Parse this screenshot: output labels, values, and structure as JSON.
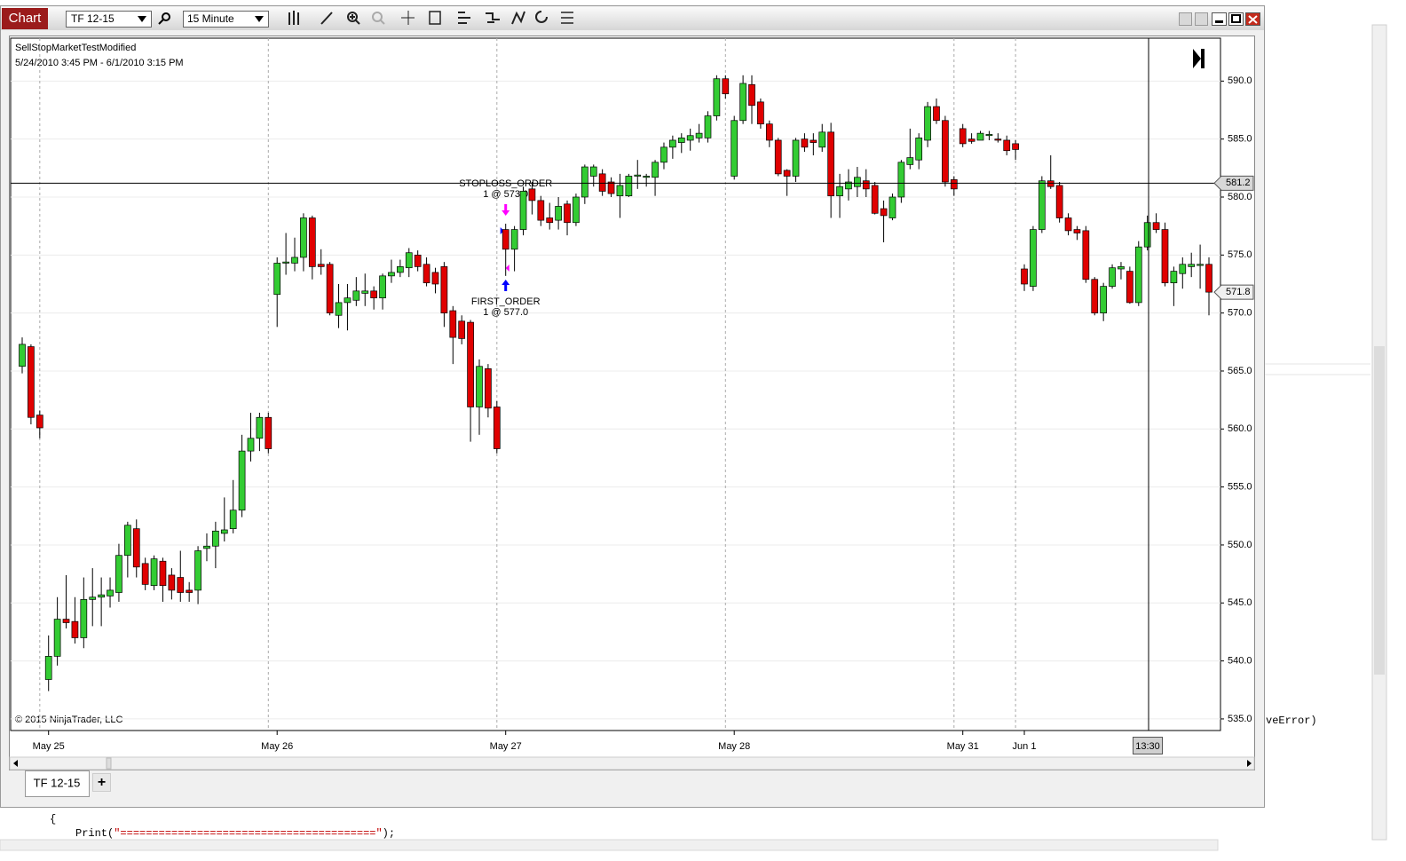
{
  "window": {
    "tab_label": "Chart",
    "instrument": "TF 12-15",
    "interval": "15 Minute",
    "bottom_tab": "TF 12-15",
    "add_tab": "+"
  },
  "code": {
    "brace": "{",
    "print_call": "Print(",
    "print_string": "\"========================================\"",
    "print_end": ");",
    "fragment": "veError)"
  },
  "chart_data": {
    "type": "candlestick",
    "title": "SellStopMarketTestModified",
    "subtitle": "5/24/2010 3:45 PM - 6/1/2010 3:15 PM",
    "copyright": "© 2015 NinjaTrader, LLC",
    "up_color": "#33cc33",
    "down_color": "#e00000",
    "categories": [
      null,
      null,
      null,
      "May 25",
      null,
      null,
      null,
      null,
      null,
      null,
      null,
      null,
      null,
      null,
      null,
      null,
      null,
      null,
      null,
      null,
      null,
      null,
      null,
      null,
      null,
      null,
      null,
      null,
      null,
      "May 26",
      null,
      null,
      null,
      null,
      null,
      null,
      null,
      null,
      null,
      null,
      null,
      null,
      null,
      null,
      null,
      null,
      null,
      null,
      null,
      null,
      null,
      null,
      null,
      null,
      null,
      "May 27",
      null,
      null,
      null,
      null,
      null,
      null,
      null,
      null,
      null,
      null,
      null,
      null,
      null,
      null,
      null,
      null,
      null,
      null,
      null,
      null,
      null,
      null,
      null,
      null,
      null,
      "May 28",
      null,
      null,
      null,
      null,
      null,
      null,
      null,
      null,
      null,
      null,
      null,
      null,
      null,
      null,
      null,
      null,
      null,
      null,
      null,
      null,
      null,
      null,
      null,
      null,
      null,
      "May 31",
      null,
      null,
      null,
      null,
      null,
      null,
      "Jun 1",
      null,
      null,
      null,
      null,
      null,
      null,
      null,
      null,
      null,
      null,
      null,
      null,
      null,
      null,
      null,
      null,
      null,
      null,
      null,
      null,
      null
    ],
    "open": [
      565.4,
      567.1,
      561.2,
      538.4,
      540.4,
      543.6,
      543.4,
      542.0,
      545.3,
      545.5,
      545.6,
      545.9,
      549.1,
      551.4,
      548.4,
      546.5,
      548.6,
      547.4,
      547.2,
      546.1,
      546.1,
      549.7,
      549.9,
      551.0,
      551.4,
      553.0,
      558.1,
      559.2,
      561.0,
      571.6,
      574.3,
      574.3,
      574.8,
      578.2,
      574.2,
      574.2,
      569.8,
      570.9,
      571.1,
      571.7,
      571.9,
      571.3,
      573.2,
      573.5,
      573.9,
      575.0,
      574.2,
      573.5,
      574.0,
      570.2,
      569.3,
      569.2,
      561.9,
      565.2,
      561.9,
      577.2,
      575.5,
      577.2,
      580.7,
      579.7,
      578.2,
      578.0,
      579.4,
      577.8,
      580.0,
      581.8,
      582.0,
      581.3,
      580.1,
      580.1,
      581.8,
      581.7,
      581.7,
      583.0,
      584.3,
      584.7,
      584.9,
      585.1,
      585.1,
      587.0,
      590.2,
      581.8,
      586.6,
      589.7,
      588.2,
      586.3,
      584.9,
      582.3,
      581.8,
      585.0,
      584.9,
      584.3,
      585.6,
      580.1,
      580.7,
      580.9,
      581.4,
      581.0,
      579.0,
      578.2,
      580.0,
      582.8,
      583.2,
      584.9,
      587.8,
      586.6,
      581.5,
      585.9,
      585.0,
      584.9,
      585.3,
      585.0,
      584.9,
      584.6,
      573.8,
      572.3,
      577.2,
      581.4,
      581.0,
      578.2,
      577.2,
      577.1,
      572.9,
      570.0,
      572.3,
      573.8,
      573.6,
      570.9,
      575.7,
      577.8,
      577.2,
      572.6,
      573.4,
      574.0,
      574.1,
      574.2
    ],
    "high": [
      567.9,
      567.3,
      561.6,
      542.2,
      545.5,
      547.4,
      545.5,
      547.2,
      548.0,
      547.2,
      547.2,
      550.1,
      552.0,
      552.2,
      548.9,
      549.1,
      548.9,
      548.0,
      549.5,
      546.8,
      549.9,
      551.0,
      552.0,
      554.1,
      555.6,
      559.5,
      561.4,
      561.4,
      561.4,
      574.8,
      576.9,
      576.5,
      578.6,
      578.4,
      575.5,
      574.4,
      572.5,
      572.5,
      573.1,
      573.4,
      572.3,
      573.4,
      574.6,
      574.6,
      575.6,
      575.4,
      574.8,
      573.9,
      574.4,
      570.6,
      569.8,
      569.4,
      566.0,
      565.6,
      562.4,
      577.7,
      577.5,
      580.9,
      581.3,
      580.1,
      579.5,
      580.0,
      579.7,
      580.3,
      582.8,
      582.8,
      582.4,
      581.7,
      582.0,
      582.0,
      583.2,
      582.0,
      583.2,
      584.7,
      585.3,
      585.5,
      585.9,
      586.3,
      587.4,
      590.5,
      590.5,
      587.0,
      590.5,
      590.5,
      588.5,
      586.6,
      585.1,
      582.4,
      585.1,
      585.5,
      585.5,
      586.3,
      586.4,
      582.0,
      582.4,
      582.6,
      582.4,
      581.3,
      579.7,
      580.3,
      583.2,
      585.9,
      585.5,
      588.2,
      588.5,
      587.0,
      581.8,
      586.3,
      585.5,
      585.7,
      585.7,
      585.5,
      585.3,
      584.9,
      574.2,
      577.5,
      581.8,
      583.6,
      581.3,
      578.6,
      577.5,
      577.5,
      573.1,
      572.6,
      574.2,
      574.4,
      574.0,
      576.2,
      578.4,
      578.6,
      577.8,
      574.0,
      574.8,
      575.2,
      575.9,
      574.8
    ],
    "low": [
      564.8,
      560.4,
      559.2,
      537.4,
      539.6,
      542.8,
      541.5,
      541.1,
      543.0,
      543.0,
      544.6,
      545.1,
      547.2,
      547.2,
      546.1,
      546.1,
      545.1,
      545.3,
      545.1,
      545.1,
      544.9,
      548.6,
      548.0,
      550.3,
      551.0,
      552.4,
      557.2,
      558.1,
      557.9,
      568.8,
      573.3,
      573.6,
      573.6,
      572.9,
      573.3,
      569.8,
      568.7,
      568.5,
      570.6,
      570.6,
      570.3,
      570.3,
      572.6,
      573.1,
      573.1,
      573.6,
      572.3,
      571.7,
      568.8,
      565.6,
      567.3,
      558.9,
      559.5,
      561.0,
      557.9,
      573.2,
      573.6,
      576.7,
      578.5,
      577.5,
      577.2,
      577.2,
      576.7,
      577.5,
      579.4,
      580.9,
      580.1,
      580.0,
      578.2,
      580.0,
      580.7,
      580.9,
      580.1,
      582.4,
      583.3,
      583.8,
      584.0,
      584.7,
      584.7,
      586.6,
      588.5,
      581.5,
      586.3,
      586.3,
      585.9,
      584.3,
      581.8,
      580.1,
      581.3,
      583.9,
      583.6,
      583.9,
      578.2,
      578.2,
      579.7,
      580.0,
      580.0,
      578.5,
      576.1,
      578.0,
      579.5,
      582.4,
      582.4,
      584.3,
      586.3,
      580.9,
      580.1,
      584.3,
      584.6,
      584.9,
      584.9,
      584.7,
      583.6,
      583.2,
      571.9,
      571.9,
      576.9,
      580.7,
      577.8,
      576.7,
      576.3,
      572.6,
      569.8,
      569.3,
      572.1,
      572.9,
      570.8,
      570.6,
      575.4,
      576.9,
      572.3,
      570.6,
      572.1,
      573.1,
      572.1,
      569.8
    ],
    "close": [
      567.3,
      561.0,
      560.1,
      540.4,
      543.6,
      543.3,
      542.0,
      545.3,
      545.5,
      545.7,
      546.1,
      549.1,
      551.7,
      548.1,
      546.6,
      548.8,
      546.5,
      546.1,
      545.9,
      545.9,
      549.5,
      549.9,
      551.2,
      551.3,
      553.0,
      558.1,
      559.2,
      561.0,
      558.3,
      574.3,
      574.4,
      574.8,
      578.2,
      574.0,
      574.0,
      570.0,
      570.9,
      571.3,
      571.9,
      571.9,
      571.3,
      573.2,
      573.5,
      574.0,
      575.2,
      574.0,
      572.6,
      572.5,
      570.0,
      567.9,
      567.8,
      561.9,
      565.4,
      561.8,
      558.3,
      575.5,
      577.2,
      580.5,
      579.7,
      578.0,
      577.8,
      579.2,
      577.8,
      580.0,
      582.6,
      582.6,
      580.5,
      580.3,
      581.0,
      581.8,
      581.9,
      581.8,
      583.0,
      584.3,
      584.9,
      585.1,
      585.3,
      585.5,
      587.0,
      590.2,
      588.9,
      586.6,
      589.8,
      587.9,
      586.3,
      584.9,
      582.0,
      581.8,
      584.9,
      584.3,
      584.7,
      585.6,
      580.1,
      580.9,
      581.3,
      581.7,
      580.7,
      578.6,
      578.4,
      580.0,
      583.0,
      583.4,
      585.1,
      587.8,
      586.6,
      581.3,
      580.7,
      584.6,
      584.8,
      585.5,
      585.4,
      584.9,
      584.0,
      584.1,
      572.5,
      577.2,
      581.4,
      580.9,
      578.2,
      577.1,
      576.9,
      572.9,
      570.0,
      572.3,
      573.9,
      574.0,
      570.9,
      575.7,
      577.8,
      577.2,
      572.6,
      573.6,
      574.2,
      574.2,
      574.2,
      571.8
    ],
    "ylim": [
      534.0,
      593.7
    ],
    "yticks": [
      {
        "value": 535,
        "label": "535.0"
      },
      {
        "value": 540,
        "label": "540.0"
      },
      {
        "value": 545,
        "label": "545.0"
      },
      {
        "value": 550,
        "label": "550.0"
      },
      {
        "value": 555,
        "label": "555.0"
      },
      {
        "value": 560,
        "label": "560.0"
      },
      {
        "value": 565,
        "label": "565.0"
      },
      {
        "value": 570,
        "label": "570.0"
      },
      {
        "value": 575,
        "label": "575.0"
      },
      {
        "value": 580,
        "label": "580.0"
      },
      {
        "value": 585,
        "label": "585.0"
      },
      {
        "value": 590,
        "label": "590.0"
      }
    ],
    "grid": true,
    "price_line": 581.2,
    "crosshair_label": "13:30",
    "orders": [
      {
        "name": "STOPLOSS_ORDER",
        "detail": "1 @ 573.0",
        "color": "#ff00ff"
      },
      {
        "name": "FIRST_ORDER",
        "detail": "1 @ 577.0",
        "color": "#0000ff"
      }
    ]
  }
}
